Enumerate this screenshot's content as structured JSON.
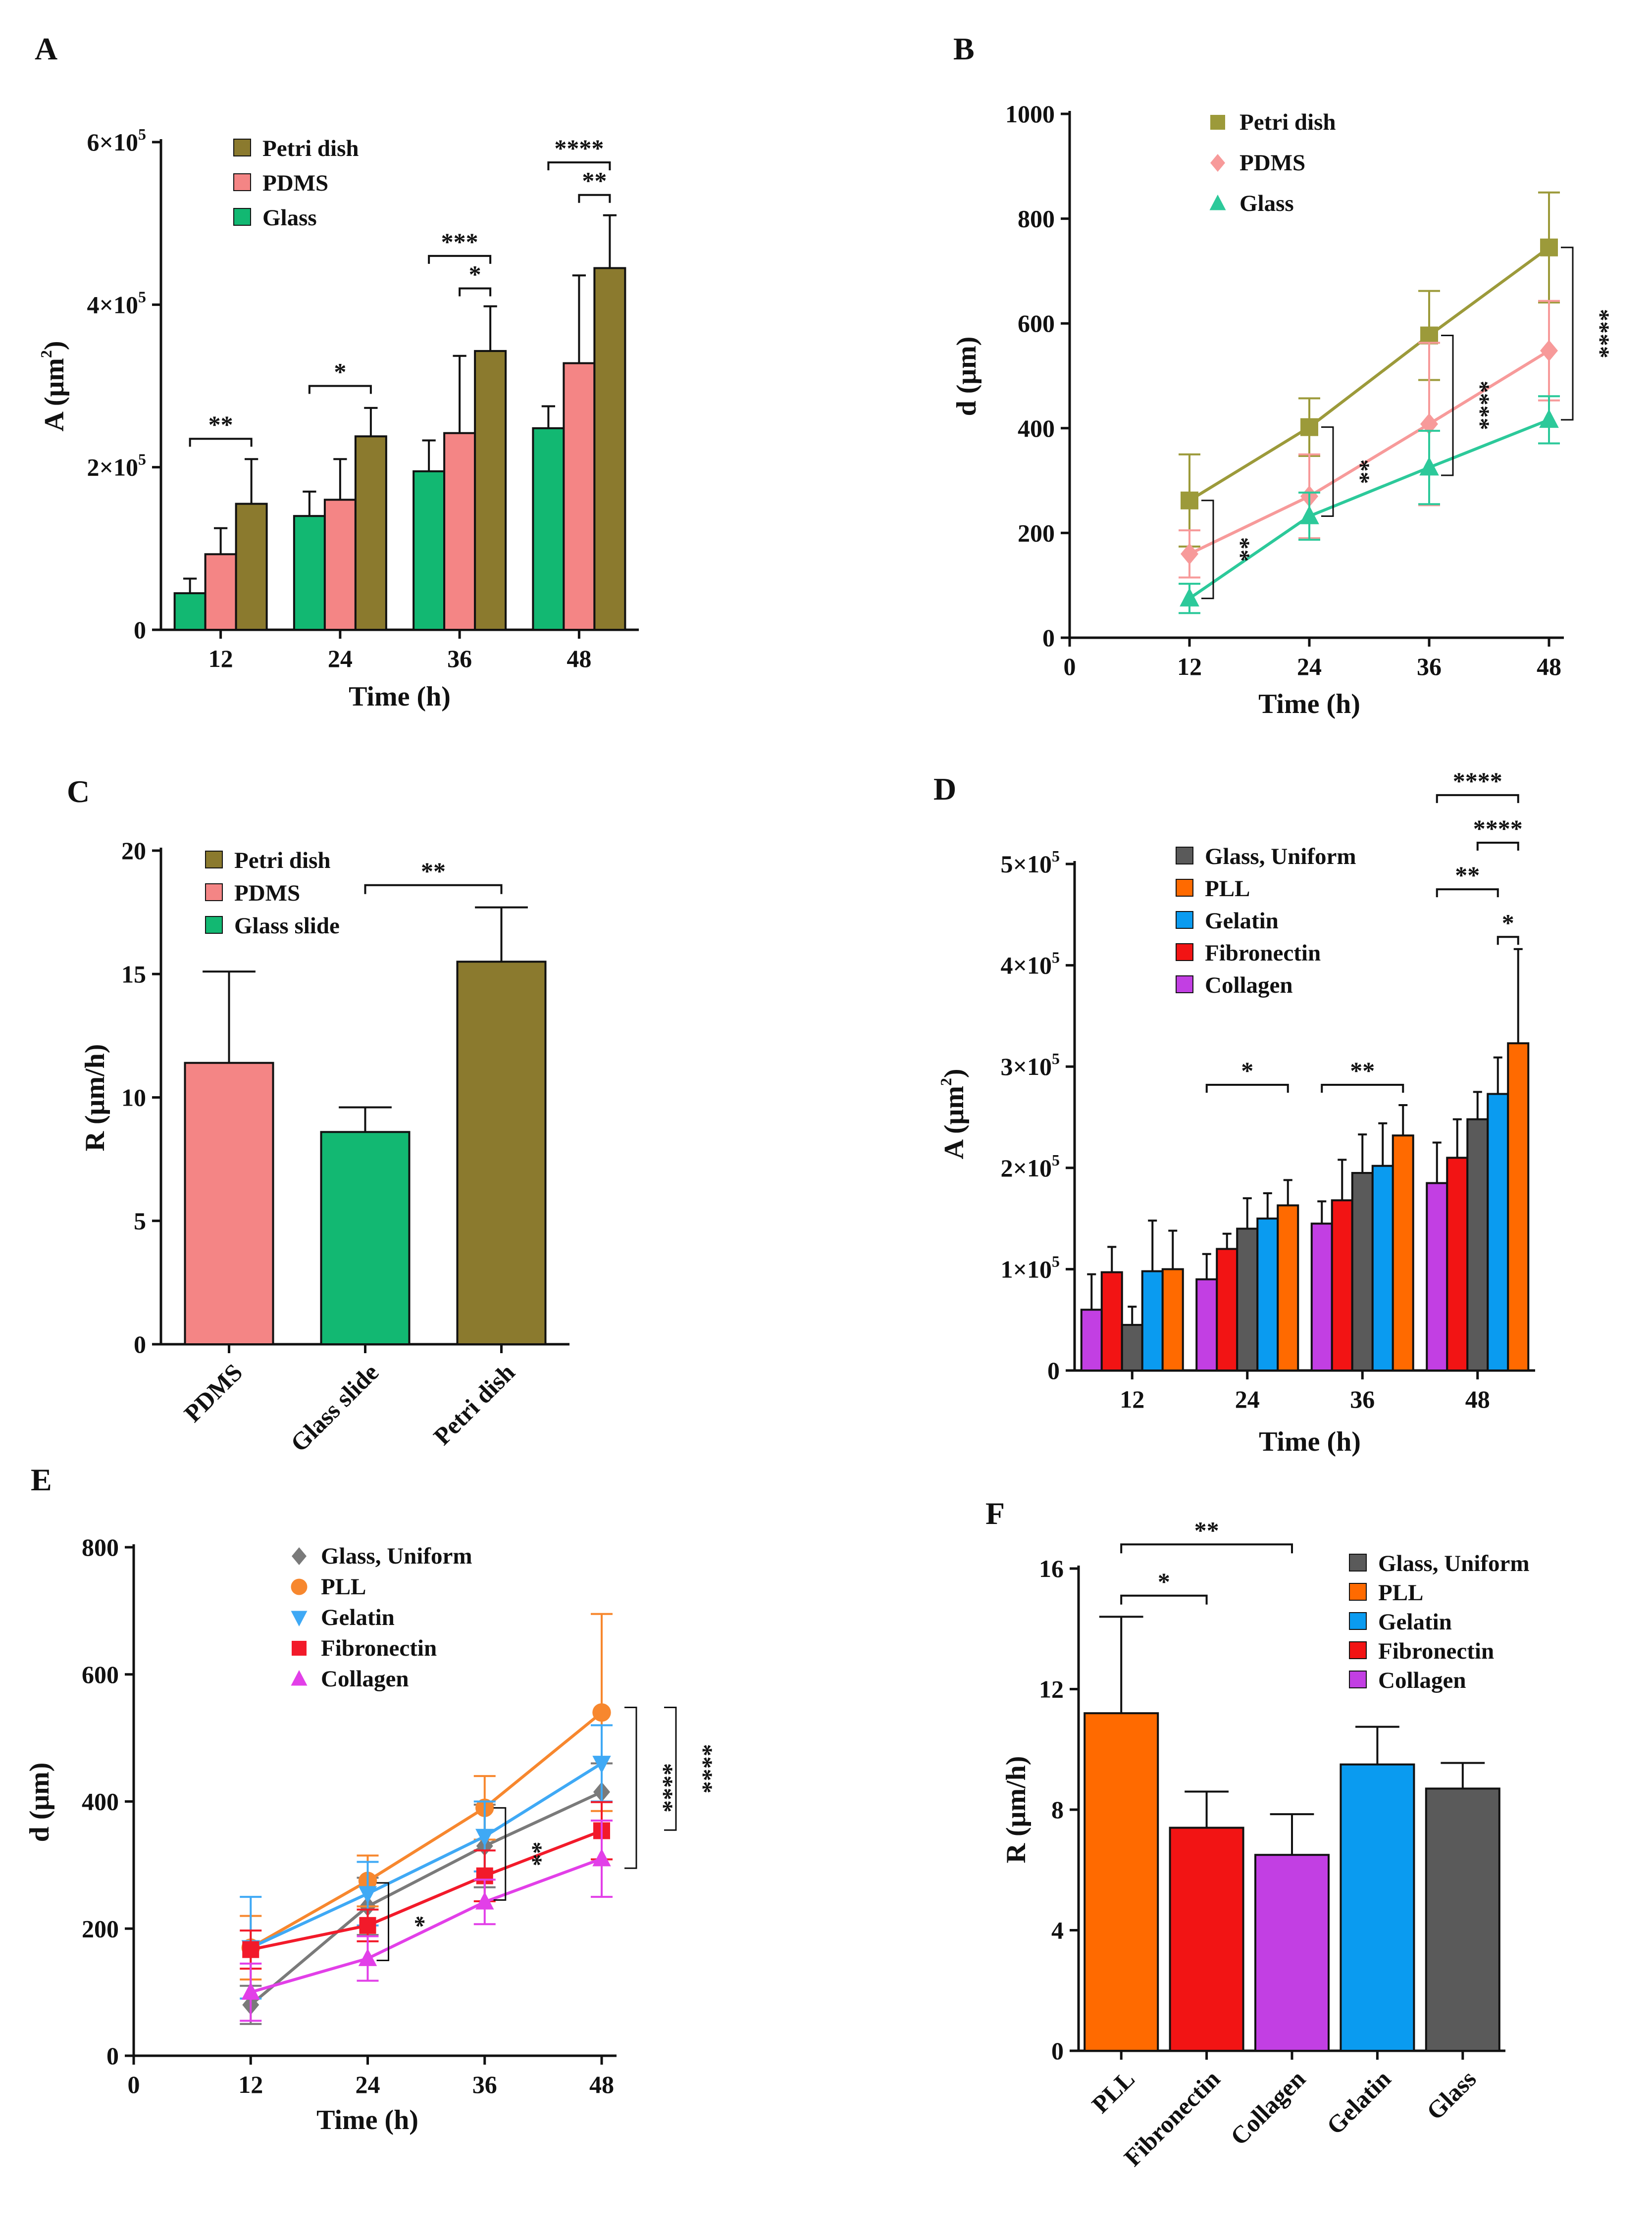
{
  "colors": {
    "petri": "#8B7A2E",
    "pdms": "#F48585",
    "glass_green": "#12B872",
    "petri_line": "#9C9A3A",
    "pdms_line": "#F79A9A",
    "glass_teal": "#2CC99A",
    "glass_gray": "#5A5A5A",
    "pll": "#FF6A00",
    "gelatin": "#0A9BF0",
    "fibronectin": "#F21414",
    "collagen": "#C23FE3",
    "e_glass": "#7A7A7A",
    "e_pll": "#F7872E",
    "e_gelatin": "#3FA9F5",
    "e_fibro": "#F21A2A",
    "e_collagen": "#E23FE8"
  },
  "chart_data": [
    {
      "panel": "A",
      "type": "bar",
      "xlabel": "Time (h)",
      "ylabel": "A  (μm",
      "ylabel_sup": "2",
      "ylabel_close": ")",
      "ylim": [
        0,
        600000
      ],
      "yticks": [
        {
          "v": 0,
          "t": "0"
        },
        {
          "v": 200000,
          "t": "2×10",
          "sup": "5"
        },
        {
          "v": 400000,
          "t": "4×10",
          "sup": "5"
        },
        {
          "v": 600000,
          "t": "6×10",
          "sup": "5"
        }
      ],
      "categories": [
        "12",
        "24",
        "36",
        "48"
      ],
      "series": [
        {
          "name": "Glass",
          "color": "glass_green",
          "values": [
            45000,
            140000,
            195000,
            248000
          ],
          "err": [
            18000,
            30000,
            38000,
            27000
          ]
        },
        {
          "name": "PDMS",
          "color": "pdms",
          "values": [
            93000,
            160000,
            242000,
            328000
          ],
          "err": [
            32000,
            50000,
            95000,
            108000
          ]
        },
        {
          "name": "Petri dish",
          "color": "petri",
          "values": [
            155000,
            238000,
            343000,
            445000
          ],
          "err": [
            55000,
            35000,
            55000,
            65000
          ]
        }
      ],
      "legend": [
        "Petri dish",
        "PDMS",
        "Glass"
      ],
      "significance": [
        {
          "label": "**",
          "cat": 0,
          "s1": 0,
          "s2": 2,
          "y": 235000
        },
        {
          "label": "*",
          "cat": 1,
          "s1": 0,
          "s2": 2,
          "y": 300000
        },
        {
          "label": "***",
          "cat": 2,
          "s1": 0,
          "s2": 2,
          "y": 460000
        },
        {
          "label": "*",
          "cat": 2,
          "s1": 1,
          "s2": 2,
          "y": 420000
        },
        {
          "label": "****",
          "cat": 3,
          "s1": 0,
          "s2": 2,
          "y": 575000
        },
        {
          "label": "**",
          "cat": 3,
          "s1": 1,
          "s2": 2,
          "y": 535000
        }
      ]
    },
    {
      "panel": "B",
      "type": "line",
      "xlabel": "Time (h)",
      "ylabel": "d (μm)",
      "xlim": [
        0,
        48
      ],
      "ylim": [
        0,
        1000
      ],
      "xticks": [
        0,
        12,
        24,
        36,
        48
      ],
      "yticks": [
        0,
        200,
        400,
        600,
        800,
        1000
      ],
      "series": [
        {
          "name": "Petri dish",
          "color": "petri_line",
          "marker": "square",
          "x": [
            12,
            24,
            36,
            48
          ],
          "y": [
            262,
            402,
            577,
            745
          ],
          "err": [
            88,
            55,
            85,
            105
          ]
        },
        {
          "name": "PDMS",
          "color": "pdms_line",
          "marker": "diamond",
          "x": [
            12,
            24,
            36,
            48
          ],
          "y": [
            160,
            270,
            408,
            548
          ],
          "err": [
            45,
            80,
            155,
            95
          ]
        },
        {
          "name": "Glass",
          "color": "glass_teal",
          "marker": "triangle",
          "x": [
            12,
            24,
            36,
            48
          ],
          "y": [
            75,
            232,
            325,
            416
          ],
          "err": [
            28,
            45,
            70,
            45
          ]
        }
      ],
      "significance": [
        {
          "label": "**",
          "x": 12,
          "y1": 75,
          "y2": 262
        },
        {
          "label": "**",
          "x": 24,
          "y1": 232,
          "y2": 402
        },
        {
          "label": "****",
          "x": 36,
          "y1": 310,
          "y2": 577
        },
        {
          "label": "****",
          "x": 48,
          "y1": 416,
          "y2": 745
        }
      ]
    },
    {
      "panel": "C",
      "type": "bar",
      "xlabel": "",
      "ylabel": "R (μm/h)",
      "ylim": [
        0,
        20
      ],
      "yticks": [
        0,
        5,
        10,
        15,
        20
      ],
      "categories": [
        "PDMS",
        "Glass slide",
        "Petri dish"
      ],
      "values": [
        11.4,
        8.6,
        15.5
      ],
      "err": [
        3.7,
        1.0,
        2.2
      ],
      "bar_colors": [
        "pdms",
        "glass_green",
        "petri"
      ],
      "legend": [
        "Petri dish",
        "PDMS",
        "Glass slide"
      ],
      "legend_colors": [
        "petri",
        "pdms",
        "glass_green"
      ],
      "significance": [
        {
          "label": "**",
          "c1": 1,
          "c2": 2,
          "y": 18.6
        }
      ]
    },
    {
      "panel": "D",
      "type": "bar",
      "xlabel": "Time (h)",
      "ylabel": "A (μm",
      "ylabel_sup": "2",
      "ylabel_close": ")",
      "ylim": [
        0,
        500000
      ],
      "yticks": [
        {
          "v": 0,
          "t": "0"
        },
        {
          "v": 100000,
          "t": "1×10",
          "sup": "5"
        },
        {
          "v": 200000,
          "t": "2×10",
          "sup": "5"
        },
        {
          "v": 300000,
          "t": "3×10",
          "sup": "5"
        },
        {
          "v": 400000,
          "t": "4×10",
          "sup": "5"
        },
        {
          "v": 500000,
          "t": "5×10",
          "sup": "5"
        }
      ],
      "categories": [
        "12",
        "24",
        "36",
        "48"
      ],
      "series": [
        {
          "name": "Collagen",
          "color": "collagen",
          "values": [
            60000,
            90000,
            145000,
            185000
          ],
          "err": [
            35000,
            25000,
            22000,
            40000
          ]
        },
        {
          "name": "Fibronectin",
          "color": "fibronectin",
          "values": [
            97000,
            120000,
            168000,
            210000
          ],
          "err": [
            25000,
            15000,
            40000,
            38000
          ]
        },
        {
          "name": "Glass, Uniform",
          "color": "glass_gray",
          "values": [
            45000,
            140000,
            195000,
            248000
          ],
          "err": [
            18000,
            30000,
            38000,
            27000
          ]
        },
        {
          "name": "Gelatin",
          "color": "gelatin",
          "values": [
            98000,
            150000,
            202000,
            273000
          ],
          "err": [
            50000,
            25000,
            42000,
            36000
          ]
        },
        {
          "name": "PLL",
          "color": "pll",
          "values": [
            100000,
            163000,
            232000,
            323000
          ],
          "err": [
            38000,
            25000,
            30000,
            93000
          ]
        }
      ],
      "legend": [
        "Glass, Uniform",
        "PLL",
        "Gelatin",
        "Fibronectin",
        "Collagen"
      ],
      "legend_colors": [
        "glass_gray",
        "pll",
        "gelatin",
        "fibronectin",
        "collagen"
      ],
      "significance": [
        {
          "label": "*",
          "cat": 1,
          "s1": 0,
          "s2": 4,
          "y": 282000
        },
        {
          "label": "**",
          "cat": 2,
          "s1": 0,
          "s2": 4,
          "y": 282000
        },
        {
          "label": "****",
          "cat": 3,
          "s1": 0,
          "s2": 4,
          "y": 568000
        },
        {
          "label": "****",
          "cat": 3,
          "s1": 2,
          "s2": 4,
          "y": 521000
        },
        {
          "label": "**",
          "cat": 3,
          "s1": 0,
          "s2": 3,
          "y": 475000
        },
        {
          "label": "*",
          "cat": 3,
          "s1": 3,
          "s2": 4,
          "y": 428000
        }
      ]
    },
    {
      "panel": "E",
      "type": "line",
      "xlabel": "Time (h)",
      "ylabel": "d (μm)",
      "xlim": [
        0,
        48
      ],
      "ylim": [
        0,
        800
      ],
      "xticks": [
        0,
        12,
        24,
        36,
        48
      ],
      "yticks": [
        0,
        200,
        400,
        600,
        800
      ],
      "series": [
        {
          "name": "Glass, Uniform",
          "color": "e_glass",
          "marker": "diamond",
          "x": [
            12,
            24,
            36,
            48
          ],
          "y": [
            80,
            235,
            330,
            415
          ],
          "err": [
            30,
            45,
            65,
            45
          ]
        },
        {
          "name": "PLL",
          "color": "e_pll",
          "marker": "circle",
          "x": [
            12,
            24,
            36,
            48
          ],
          "y": [
            170,
            275,
            390,
            540
          ],
          "err": [
            50,
            40,
            50,
            155
          ]
        },
        {
          "name": "Gelatin",
          "color": "e_gelatin",
          "marker": "tri-down",
          "x": [
            12,
            24,
            36,
            48
          ],
          "y": [
            170,
            255,
            345,
            460
          ],
          "err": [
            80,
            50,
            55,
            60
          ]
        },
        {
          "name": "Fibronectin",
          "color": "e_fibro",
          "marker": "square",
          "x": [
            12,
            24,
            36,
            48
          ],
          "y": [
            167,
            205,
            283,
            354
          ],
          "err": [
            30,
            25,
            40,
            45
          ]
        },
        {
          "name": "Collagen",
          "color": "e_collagen",
          "marker": "triangle",
          "x": [
            12,
            24,
            36,
            48
          ],
          "y": [
            100,
            153,
            242,
            310
          ],
          "err": [
            45,
            35,
            35,
            60
          ]
        }
      ],
      "significance": [
        {
          "label": "*",
          "x": 24,
          "y1": 150,
          "y2": 272
        },
        {
          "label": "**",
          "x": 36,
          "y1": 245,
          "y2": 390
        },
        {
          "label": "****",
          "x": 48,
          "y1": 295,
          "y2": 548,
          "offset": 70
        },
        {
          "label": "****",
          "x": 48,
          "y1": 355,
          "y2": 548,
          "offset": 150
        }
      ]
    },
    {
      "panel": "F",
      "type": "bar",
      "xlabel": "",
      "ylabel": "R (μm/h)",
      "ylim": [
        0,
        16
      ],
      "yticks": [
        0,
        4,
        8,
        12,
        16
      ],
      "categories": [
        "PLL",
        "Fibronectin",
        "Collagen",
        "Gelatin",
        "Glass"
      ],
      "values": [
        11.2,
        7.4,
        6.5,
        9.5,
        8.7
      ],
      "err": [
        3.2,
        1.2,
        1.35,
        1.25,
        0.85
      ],
      "bar_colors": [
        "pll",
        "fibronectin",
        "collagen",
        "gelatin",
        "glass_gray"
      ],
      "legend": [
        "Glass, Uniform",
        "PLL",
        "Gelatin",
        "Fibronectin",
        "Collagen"
      ],
      "legend_colors": [
        "glass_gray",
        "pll",
        "gelatin",
        "fibronectin",
        "collagen"
      ],
      "significance": [
        {
          "label": "*",
          "c1": 0,
          "c2": 1,
          "y": 15.1
        },
        {
          "label": "**",
          "c1": 0,
          "c2": 2,
          "y": 16.8
        }
      ]
    }
  ]
}
